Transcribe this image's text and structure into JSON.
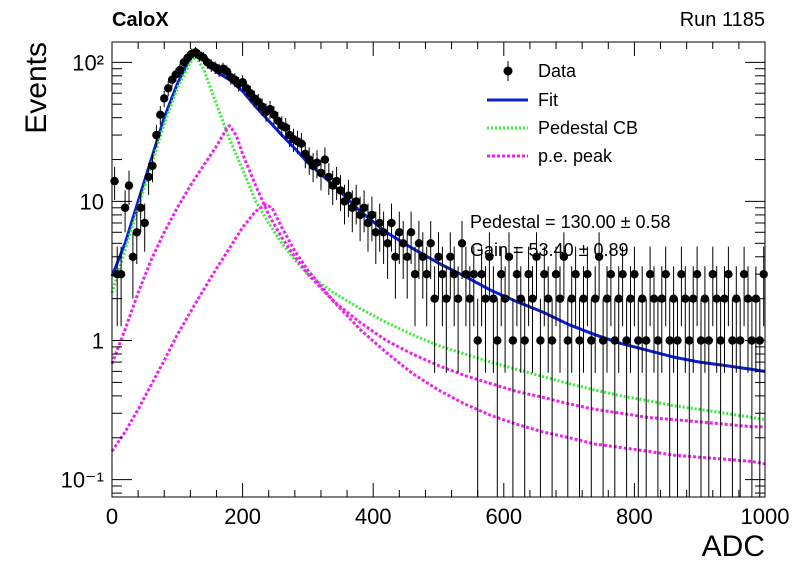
{
  "header": {
    "experiment": "CaloX",
    "run": "Run 1185"
  },
  "stats": {
    "pedestal": "Pedestal = 130.00 ± 0.58",
    "gain": "Gain = 53.40 ± 0.89"
  },
  "colors": {
    "data": "#000000",
    "fit": "#0a1ed8",
    "pedestal": "#33ee33",
    "pe_peak": "#ee22ee"
  },
  "chart_data": {
    "type": "scatter",
    "xlabel": "ADC",
    "ylabel": "Events",
    "xlim": [
      0,
      1000
    ],
    "ylim": [
      0.075,
      140
    ],
    "yscale": "log",
    "x_ticks": [
      0,
      200,
      400,
      600,
      800,
      1000
    ],
    "x_tick_labels": [
      "0",
      "200",
      "400",
      "600",
      "800",
      "1000"
    ],
    "y_ticks": [
      0.1,
      1,
      10,
      100
    ],
    "y_tick_labels": [
      "10⁻¹",
      "1",
      "10",
      "10²"
    ],
    "legend": {
      "placement": "top-right",
      "entries": [
        "Data",
        "Fit",
        "Pedestal CB",
        "p.e. peak"
      ]
    },
    "series": [
      {
        "name": "Data",
        "style": "points-with-error-bars",
        "points": [
          [
            4,
            14
          ],
          [
            8,
            3
          ],
          [
            14,
            3
          ],
          [
            20,
            9
          ],
          [
            26,
            13
          ],
          [
            32,
            4
          ],
          [
            38,
            6
          ],
          [
            44,
            9
          ],
          [
            50,
            7
          ],
          [
            56,
            15
          ],
          [
            62,
            18
          ],
          [
            68,
            30
          ],
          [
            74,
            42
          ],
          [
            80,
            55
          ],
          [
            86,
            65
          ],
          [
            92,
            75
          ],
          [
            98,
            82
          ],
          [
            104,
            88
          ],
          [
            110,
            100
          ],
          [
            116,
            108
          ],
          [
            122,
            115
          ],
          [
            128,
            118
          ],
          [
            134,
            112
          ],
          [
            140,
            108
          ],
          [
            146,
            100
          ],
          [
            152,
            95
          ],
          [
            158,
            92
          ],
          [
            164,
            88
          ],
          [
            170,
            90
          ],
          [
            176,
            86
          ],
          [
            182,
            78
          ],
          [
            188,
            75
          ],
          [
            194,
            70
          ],
          [
            200,
            72
          ],
          [
            206,
            65
          ],
          [
            212,
            60
          ],
          [
            218,
            55
          ],
          [
            224,
            52
          ],
          [
            230,
            48
          ],
          [
            236,
            44
          ],
          [
            242,
            46
          ],
          [
            248,
            42
          ],
          [
            254,
            38
          ],
          [
            260,
            35
          ],
          [
            266,
            34
          ],
          [
            272,
            30
          ],
          [
            278,
            28
          ],
          [
            284,
            27
          ],
          [
            290,
            26
          ],
          [
            296,
            22
          ],
          [
            302,
            20
          ],
          [
            308,
            18
          ],
          [
            314,
            19
          ],
          [
            320,
            16
          ],
          [
            326,
            20
          ],
          [
            332,
            15
          ],
          [
            338,
            13
          ],
          [
            344,
            14
          ],
          [
            350,
            12
          ],
          [
            356,
            10
          ],
          [
            362,
            11
          ],
          [
            368,
            9
          ],
          [
            374,
            10
          ],
          [
            380,
            8
          ],
          [
            386,
            9
          ],
          [
            392,
            7
          ],
          [
            398,
            8
          ],
          [
            404,
            6
          ],
          [
            410,
            7
          ],
          [
            416,
            6
          ],
          [
            422,
            5
          ],
          [
            428,
            7
          ],
          [
            434,
            4
          ],
          [
            440,
            6
          ],
          [
            446,
            5
          ],
          [
            452,
            4
          ],
          [
            458,
            6
          ],
          [
            464,
            3
          ],
          [
            470,
            5
          ],
          [
            476,
            4
          ],
          [
            482,
            3
          ],
          [
            488,
            5
          ],
          [
            494,
            2
          ],
          [
            500,
            4
          ],
          [
            506,
            3
          ],
          [
            512,
            2
          ],
          [
            518,
            4
          ],
          [
            524,
            3
          ],
          [
            530,
            2
          ],
          [
            536,
            5
          ],
          [
            542,
            3
          ],
          [
            548,
            2
          ],
          [
            554,
            3
          ],
          [
            560,
            1
          ],
          [
            566,
            3
          ],
          [
            572,
            2
          ],
          [
            578,
            4
          ],
          [
            584,
            2
          ],
          [
            590,
            1
          ],
          [
            596,
            3
          ],
          [
            602,
            2
          ],
          [
            608,
            4
          ],
          [
            614,
            1
          ],
          [
            620,
            3
          ],
          [
            626,
            2
          ],
          [
            632,
            1
          ],
          [
            638,
            3
          ],
          [
            644,
            2
          ],
          [
            650,
            4
          ],
          [
            656,
            1
          ],
          [
            662,
            3
          ],
          [
            668,
            2
          ],
          [
            674,
            1
          ],
          [
            680,
            3
          ],
          [
            686,
            2
          ],
          [
            692,
            4
          ],
          [
            698,
            1
          ],
          [
            704,
            2
          ],
          [
            710,
            3
          ],
          [
            716,
            1
          ],
          [
            722,
            2
          ],
          [
            728,
            3
          ],
          [
            734,
            1
          ],
          [
            740,
            2
          ],
          [
            746,
            4
          ],
          [
            752,
            1
          ],
          [
            758,
            2
          ],
          [
            764,
            3
          ],
          [
            770,
            1
          ],
          [
            776,
            2
          ],
          [
            782,
            3
          ],
          [
            788,
            1
          ],
          [
            794,
            2
          ],
          [
            800,
            3
          ],
          [
            806,
            1
          ],
          [
            812,
            2
          ],
          [
            818,
            1
          ],
          [
            824,
            3
          ],
          [
            830,
            2
          ],
          [
            836,
            1
          ],
          [
            842,
            2
          ],
          [
            848,
            3
          ],
          [
            854,
            1
          ],
          [
            860,
            2
          ],
          [
            866,
            1
          ],
          [
            872,
            3
          ],
          [
            878,
            2
          ],
          [
            884,
            1
          ],
          [
            890,
            2
          ],
          [
            896,
            3
          ],
          [
            902,
            1
          ],
          [
            908,
            2
          ],
          [
            914,
            1
          ],
          [
            920,
            3
          ],
          [
            926,
            2
          ],
          [
            932,
            1
          ],
          [
            938,
            2
          ],
          [
            944,
            3
          ],
          [
            950,
            1
          ],
          [
            956,
            2
          ],
          [
            962,
            1
          ],
          [
            968,
            3
          ],
          [
            974,
            2
          ],
          [
            980,
            1
          ],
          [
            986,
            2
          ],
          [
            992,
            1
          ],
          [
            998,
            3
          ]
        ]
      },
      {
        "name": "Fit",
        "style": "solid",
        "points": [
          [
            0,
            2.9
          ],
          [
            20,
            5.0
          ],
          [
            40,
            10
          ],
          [
            60,
            20
          ],
          [
            80,
            40
          ],
          [
            100,
            70
          ],
          [
            120,
            108
          ],
          [
            128,
            118
          ],
          [
            140,
            105
          ],
          [
            160,
            85
          ],
          [
            180,
            75
          ],
          [
            200,
            62
          ],
          [
            220,
            48
          ],
          [
            240,
            38
          ],
          [
            260,
            30
          ],
          [
            280,
            24
          ],
          [
            300,
            19
          ],
          [
            340,
            13
          ],
          [
            380,
            8.5
          ],
          [
            420,
            6.0
          ],
          [
            460,
            4.6
          ],
          [
            500,
            3.6
          ],
          [
            540,
            2.9
          ],
          [
            580,
            2.3
          ],
          [
            620,
            1.9
          ],
          [
            660,
            1.6
          ],
          [
            700,
            1.3
          ],
          [
            740,
            1.1
          ],
          [
            780,
            0.95
          ],
          [
            820,
            0.85
          ],
          [
            860,
            0.76
          ],
          [
            900,
            0.7
          ],
          [
            940,
            0.66
          ],
          [
            980,
            0.62
          ],
          [
            1000,
            0.6
          ]
        ]
      },
      {
        "name": "Pedestal CB",
        "style": "dotted",
        "points": [
          [
            0,
            2.2
          ],
          [
            20,
            4.5
          ],
          [
            40,
            9
          ],
          [
            60,
            18
          ],
          [
            80,
            36
          ],
          [
            100,
            65
          ],
          [
            120,
            100
          ],
          [
            128,
            110
          ],
          [
            140,
            90
          ],
          [
            160,
            50
          ],
          [
            180,
            28
          ],
          [
            200,
            17
          ],
          [
            220,
            10
          ],
          [
            240,
            7.0
          ],
          [
            260,
            5.0
          ],
          [
            280,
            3.8
          ],
          [
            300,
            3.0
          ],
          [
            340,
            2.2
          ],
          [
            380,
            1.7
          ],
          [
            420,
            1.35
          ],
          [
            460,
            1.1
          ],
          [
            500,
            0.92
          ],
          [
            540,
            0.8
          ],
          [
            580,
            0.7
          ],
          [
            620,
            0.62
          ],
          [
            660,
            0.55
          ],
          [
            700,
            0.49
          ],
          [
            740,
            0.44
          ],
          [
            780,
            0.4
          ],
          [
            820,
            0.37
          ],
          [
            860,
            0.34
          ],
          [
            900,
            0.32
          ],
          [
            940,
            0.3
          ],
          [
            980,
            0.28
          ],
          [
            1000,
            0.27
          ]
        ]
      },
      {
        "name": "p.e. peak",
        "style": "dotted",
        "points": [
          [
            0,
            0.68
          ],
          [
            20,
            1.2
          ],
          [
            40,
            2.2
          ],
          [
            60,
            3.8
          ],
          [
            80,
            6.0
          ],
          [
            100,
            9.0
          ],
          [
            120,
            13
          ],
          [
            140,
            18
          ],
          [
            160,
            25
          ],
          [
            175,
            33
          ],
          [
            180,
            35
          ],
          [
            190,
            30
          ],
          [
            200,
            22
          ],
          [
            220,
            13
          ],
          [
            240,
            8.0
          ],
          [
            260,
            5.5
          ],
          [
            280,
            4.0
          ],
          [
            300,
            3.0
          ],
          [
            340,
            1.9
          ],
          [
            380,
            1.35
          ],
          [
            420,
            1.0
          ],
          [
            460,
            0.8
          ],
          [
            500,
            0.66
          ],
          [
            540,
            0.56
          ],
          [
            580,
            0.49
          ],
          [
            620,
            0.43
          ],
          [
            660,
            0.39
          ],
          [
            700,
            0.35
          ],
          [
            740,
            0.32
          ],
          [
            780,
            0.3
          ],
          [
            820,
            0.28
          ],
          [
            860,
            0.27
          ],
          [
            900,
            0.26
          ],
          [
            940,
            0.25
          ],
          [
            980,
            0.24
          ],
          [
            1000,
            0.24
          ]
        ]
      },
      {
        "name": "p.e. peak",
        "style": "dotted",
        "points": [
          [
            0,
            0.16
          ],
          [
            20,
            0.22
          ],
          [
            40,
            0.32
          ],
          [
            60,
            0.48
          ],
          [
            80,
            0.72
          ],
          [
            100,
            1.1
          ],
          [
            120,
            1.6
          ],
          [
            140,
            2.3
          ],
          [
            160,
            3.3
          ],
          [
            180,
            4.6
          ],
          [
            200,
            6.5
          ],
          [
            220,
            8.5
          ],
          [
            235,
            9.5
          ],
          [
            245,
            9.0
          ],
          [
            260,
            6.5
          ],
          [
            280,
            4.4
          ],
          [
            300,
            3.2
          ],
          [
            340,
            1.9
          ],
          [
            380,
            1.2
          ],
          [
            420,
            0.82
          ],
          [
            460,
            0.58
          ],
          [
            500,
            0.44
          ],
          [
            540,
            0.35
          ],
          [
            580,
            0.29
          ],
          [
            620,
            0.25
          ],
          [
            660,
            0.22
          ],
          [
            700,
            0.2
          ],
          [
            740,
            0.18
          ],
          [
            780,
            0.17
          ],
          [
            820,
            0.16
          ],
          [
            860,
            0.15
          ],
          [
            900,
            0.145
          ],
          [
            940,
            0.14
          ],
          [
            980,
            0.135
          ],
          [
            1000,
            0.13
          ]
        ]
      }
    ]
  }
}
